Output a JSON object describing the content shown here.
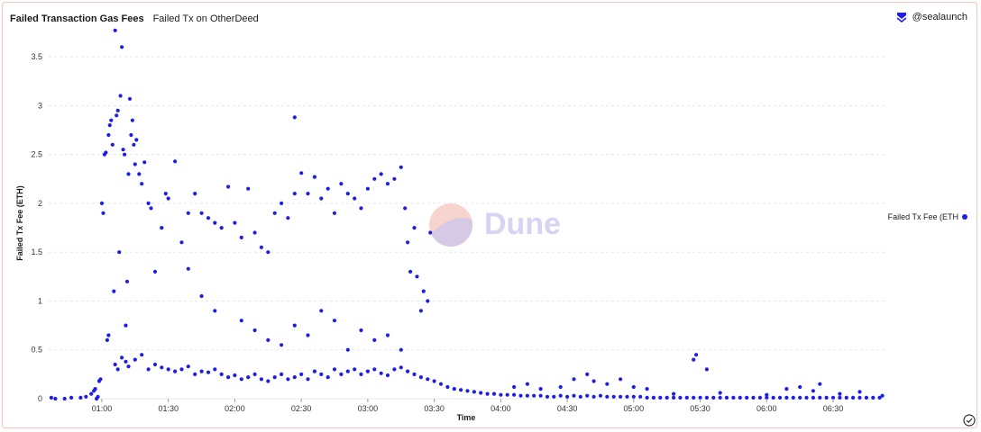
{
  "header": {
    "title": "Failed Transaction Gas Fees",
    "subtitle": "Failed Tx on OtherDeed",
    "attribution": "@sealaunch",
    "attribution_icon": "sealaunch-logo-icon"
  },
  "watermark": "Dune",
  "footer": {
    "status_icon": "check-circle-icon"
  },
  "colors": {
    "series": "#1d1de6",
    "grid": "#e8e8e8",
    "axis_text": "#333333"
  },
  "chart_data": {
    "type": "scatter",
    "xlabel": "Time",
    "ylabel": "Failed Tx Fee (ETH)",
    "x_unit": "time of day (hours, decimal)",
    "xlim": [
      0.6,
      6.9
    ],
    "ylim": [
      0,
      3.75
    ],
    "x_ticks": [
      {
        "v": 1.0,
        "label": "01:00"
      },
      {
        "v": 1.5,
        "label": "01:30"
      },
      {
        "v": 2.0,
        "label": "02:00"
      },
      {
        "v": 2.5,
        "label": "02:30"
      },
      {
        "v": 3.0,
        "label": "03:00"
      },
      {
        "v": 3.5,
        "label": "03:30"
      },
      {
        "v": 4.0,
        "label": "04:00"
      },
      {
        "v": 4.5,
        "label": "04:30"
      },
      {
        "v": 5.0,
        "label": "05:00"
      },
      {
        "v": 5.5,
        "label": "05:30"
      },
      {
        "v": 6.0,
        "label": "06:00"
      },
      {
        "v": 6.5,
        "label": "06:30"
      }
    ],
    "y_ticks": [
      {
        "v": 0,
        "label": "0"
      },
      {
        "v": 0.5,
        "label": "0.5"
      },
      {
        "v": 1,
        "label": "1"
      },
      {
        "v": 1.5,
        "label": "1.5"
      },
      {
        "v": 2,
        "label": "2"
      },
      {
        "v": 2.5,
        "label": "2.5"
      },
      {
        "v": 3,
        "label": "3"
      },
      {
        "v": 3.5,
        "label": "3.5"
      }
    ],
    "grid": true,
    "legend_position": "right",
    "series": [
      {
        "name": "Failed Tx Fee (ETH",
        "points": [
          [
            0.62,
            0.01
          ],
          [
            0.65,
            0.0
          ],
          [
            0.72,
            0.0
          ],
          [
            0.77,
            0.01
          ],
          [
            0.84,
            0.01
          ],
          [
            0.88,
            0.02
          ],
          [
            0.92,
            0.05
          ],
          [
            0.94,
            0.08
          ],
          [
            0.95,
            0.1
          ],
          [
            0.96,
            0.0
          ],
          [
            0.97,
            0.02
          ],
          [
            0.98,
            0.18
          ],
          [
            0.99,
            0.2
          ],
          [
            1.0,
            2.0
          ],
          [
            1.01,
            1.9
          ],
          [
            1.02,
            2.5
          ],
          [
            1.03,
            2.52
          ],
          [
            1.04,
            0.6
          ],
          [
            1.05,
            0.65
          ],
          [
            1.05,
            2.7
          ],
          [
            1.06,
            2.8
          ],
          [
            1.07,
            2.85
          ],
          [
            1.08,
            2.6
          ],
          [
            1.09,
            1.1
          ],
          [
            1.1,
            3.77
          ],
          [
            1.11,
            2.9
          ],
          [
            1.12,
            2.95
          ],
          [
            1.13,
            1.5
          ],
          [
            1.14,
            3.1
          ],
          [
            1.15,
            3.6
          ],
          [
            1.16,
            2.55
          ],
          [
            1.17,
            2.5
          ],
          [
            1.18,
            0.75
          ],
          [
            1.19,
            1.2
          ],
          [
            1.2,
            2.3
          ],
          [
            1.21,
            3.07
          ],
          [
            1.22,
            2.7
          ],
          [
            1.23,
            2.85
          ],
          [
            1.24,
            2.6
          ],
          [
            1.25,
            2.4
          ],
          [
            1.26,
            2.65
          ],
          [
            1.28,
            2.3
          ],
          [
            1.3,
            2.2
          ],
          [
            1.32,
            2.42
          ],
          [
            1.35,
            2.0
          ],
          [
            1.37,
            1.95
          ],
          [
            1.4,
            1.3
          ],
          [
            1.45,
            1.75
          ],
          [
            1.48,
            2.1
          ],
          [
            1.5,
            2.05
          ],
          [
            1.55,
            2.43
          ],
          [
            1.6,
            1.6
          ],
          [
            1.65,
            1.9
          ],
          [
            1.7,
            2.1
          ],
          [
            1.75,
            1.9
          ],
          [
            1.8,
            1.85
          ],
          [
            1.85,
            1.8
          ],
          [
            1.9,
            1.75
          ],
          [
            1.95,
            2.17
          ],
          [
            2.0,
            1.8
          ],
          [
            2.05,
            1.65
          ],
          [
            2.1,
            2.15
          ],
          [
            2.15,
            1.7
          ],
          [
            2.2,
            1.55
          ],
          [
            2.25,
            1.5
          ],
          [
            2.3,
            1.9
          ],
          [
            2.35,
            2.0
          ],
          [
            2.4,
            1.85
          ],
          [
            2.45,
            2.1
          ],
          [
            2.5,
            2.31
          ],
          [
            2.55,
            2.1
          ],
          [
            2.6,
            2.27
          ],
          [
            2.65,
            2.05
          ],
          [
            2.7,
            2.15
          ],
          [
            2.75,
            1.9
          ],
          [
            2.8,
            2.2
          ],
          [
            2.85,
            2.1
          ],
          [
            2.9,
            2.05
          ],
          [
            2.95,
            1.95
          ],
          [
            3.0,
            2.15
          ],
          [
            3.05,
            2.25
          ],
          [
            3.1,
            2.3
          ],
          [
            3.15,
            2.2
          ],
          [
            3.2,
            2.25
          ],
          [
            3.25,
            2.37
          ],
          [
            3.28,
            1.95
          ],
          [
            3.3,
            1.6
          ],
          [
            3.32,
            1.3
          ],
          [
            3.35,
            1.75
          ],
          [
            3.37,
            1.25
          ],
          [
            3.4,
            0.9
          ],
          [
            3.42,
            1.1
          ],
          [
            3.45,
            1.0
          ],
          [
            3.47,
            1.7
          ],
          [
            2.45,
            2.88
          ],
          [
            1.65,
            1.33
          ],
          [
            1.75,
            1.05
          ],
          [
            1.85,
            0.9
          ],
          [
            2.05,
            0.8
          ],
          [
            2.15,
            0.7
          ],
          [
            2.25,
            0.6
          ],
          [
            2.35,
            0.55
          ],
          [
            2.45,
            0.75
          ],
          [
            2.55,
            0.65
          ],
          [
            2.65,
            0.9
          ],
          [
            2.75,
            0.8
          ],
          [
            2.85,
            0.5
          ],
          [
            2.95,
            0.7
          ],
          [
            3.05,
            0.6
          ],
          [
            3.15,
            0.65
          ],
          [
            3.25,
            0.5
          ],
          [
            1.1,
            0.35
          ],
          [
            1.12,
            0.3
          ],
          [
            1.15,
            0.42
          ],
          [
            1.18,
            0.38
          ],
          [
            1.2,
            0.33
          ],
          [
            1.25,
            0.4
          ],
          [
            1.3,
            0.45
          ],
          [
            1.35,
            0.3
          ],
          [
            1.4,
            0.35
          ],
          [
            1.45,
            0.32
          ],
          [
            1.5,
            0.3
          ],
          [
            1.55,
            0.28
          ],
          [
            1.6,
            0.3
          ],
          [
            1.65,
            0.33
          ],
          [
            1.7,
            0.25
          ],
          [
            1.75,
            0.28
          ],
          [
            1.8,
            0.27
          ],
          [
            1.85,
            0.3
          ],
          [
            1.9,
            0.25
          ],
          [
            1.95,
            0.22
          ],
          [
            2.0,
            0.24
          ],
          [
            2.05,
            0.2
          ],
          [
            2.1,
            0.22
          ],
          [
            2.15,
            0.25
          ],
          [
            2.2,
            0.2
          ],
          [
            2.25,
            0.18
          ],
          [
            2.3,
            0.22
          ],
          [
            2.35,
            0.25
          ],
          [
            2.4,
            0.2
          ],
          [
            2.45,
            0.22
          ],
          [
            2.5,
            0.25
          ],
          [
            2.55,
            0.2
          ],
          [
            2.6,
            0.28
          ],
          [
            2.65,
            0.25
          ],
          [
            2.7,
            0.22
          ],
          [
            2.75,
            0.3
          ],
          [
            2.8,
            0.25
          ],
          [
            2.85,
            0.28
          ],
          [
            2.9,
            0.3
          ],
          [
            2.95,
            0.25
          ],
          [
            3.0,
            0.28
          ],
          [
            3.05,
            0.3
          ],
          [
            3.1,
            0.26
          ],
          [
            3.15,
            0.24
          ],
          [
            3.2,
            0.3
          ],
          [
            3.25,
            0.32
          ],
          [
            3.3,
            0.28
          ],
          [
            3.35,
            0.25
          ],
          [
            3.4,
            0.22
          ],
          [
            3.45,
            0.2
          ],
          [
            3.5,
            0.18
          ],
          [
            3.55,
            0.15
          ],
          [
            3.6,
            0.12
          ],
          [
            3.65,
            0.1
          ],
          [
            3.7,
            0.09
          ],
          [
            3.75,
            0.08
          ],
          [
            3.8,
            0.07
          ],
          [
            3.85,
            0.06
          ],
          [
            3.9,
            0.05
          ],
          [
            3.95,
            0.05
          ],
          [
            4.0,
            0.04
          ],
          [
            4.05,
            0.04
          ],
          [
            4.1,
            0.04
          ],
          [
            4.15,
            0.03
          ],
          [
            4.2,
            0.03
          ],
          [
            4.25,
            0.03
          ],
          [
            4.3,
            0.03
          ],
          [
            4.35,
            0.02
          ],
          [
            4.4,
            0.02
          ],
          [
            4.45,
            0.03
          ],
          [
            4.5,
            0.02
          ],
          [
            4.55,
            0.03
          ],
          [
            4.6,
            0.02
          ],
          [
            4.65,
            0.03
          ],
          [
            4.7,
            0.02
          ],
          [
            4.75,
            0.03
          ],
          [
            4.8,
            0.02
          ],
          [
            4.85,
            0.02
          ],
          [
            4.9,
            0.02
          ],
          [
            4.95,
            0.02
          ],
          [
            5.0,
            0.02
          ],
          [
            5.05,
            0.02
          ],
          [
            5.1,
            0.01
          ],
          [
            5.15,
            0.01
          ],
          [
            5.2,
            0.01
          ],
          [
            5.25,
            0.01
          ],
          [
            5.3,
            0.01
          ],
          [
            5.35,
            0.01
          ],
          [
            5.4,
            0.01
          ],
          [
            5.45,
            0.01
          ],
          [
            5.5,
            0.01
          ],
          [
            5.55,
            0.01
          ],
          [
            5.6,
            0.01
          ],
          [
            5.65,
            0.01
          ],
          [
            5.7,
            0.01
          ],
          [
            5.75,
            0.01
          ],
          [
            5.8,
            0.01
          ],
          [
            5.85,
            0.01
          ],
          [
            5.9,
            0.01
          ],
          [
            5.95,
            0.01
          ],
          [
            6.0,
            0.01
          ],
          [
            6.05,
            0.01
          ],
          [
            6.1,
            0.01
          ],
          [
            6.15,
            0.01
          ],
          [
            6.2,
            0.01
          ],
          [
            6.25,
            0.01
          ],
          [
            6.3,
            0.01
          ],
          [
            6.35,
            0.01
          ],
          [
            6.4,
            0.01
          ],
          [
            6.45,
            0.01
          ],
          [
            6.5,
            0.01
          ],
          [
            6.55,
            0.01
          ],
          [
            6.6,
            0.01
          ],
          [
            6.65,
            0.01
          ],
          [
            6.7,
            0.01
          ],
          [
            6.75,
            0.01
          ],
          [
            6.8,
            0.01
          ],
          [
            6.85,
            0.01
          ],
          [
            6.87,
            0.03
          ],
          [
            4.1,
            0.12
          ],
          [
            4.2,
            0.15
          ],
          [
            4.3,
            0.1
          ],
          [
            4.45,
            0.12
          ],
          [
            4.55,
            0.2
          ],
          [
            4.65,
            0.25
          ],
          [
            4.7,
            0.18
          ],
          [
            4.8,
            0.15
          ],
          [
            4.9,
            0.2
          ],
          [
            5.0,
            0.12
          ],
          [
            5.1,
            0.1
          ],
          [
            5.3,
            0.05
          ],
          [
            5.45,
            0.4
          ],
          [
            5.47,
            0.45
          ],
          [
            5.55,
            0.3
          ],
          [
            5.65,
            0.06
          ],
          [
            6.0,
            0.04
          ],
          [
            6.15,
            0.1
          ],
          [
            6.25,
            0.12
          ],
          [
            6.35,
            0.08
          ],
          [
            6.4,
            0.15
          ],
          [
            6.55,
            0.05
          ],
          [
            6.7,
            0.07
          ]
        ]
      }
    ]
  }
}
